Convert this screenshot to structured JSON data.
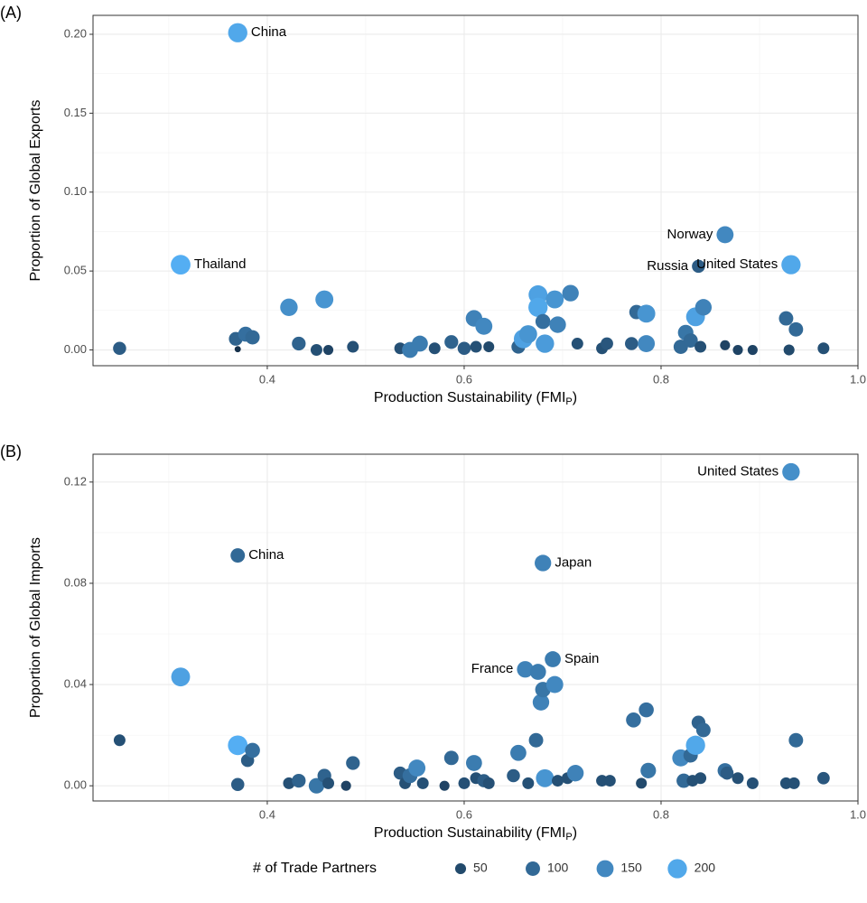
{
  "chart_data": [
    {
      "type": "scatter",
      "panel_label": "(A)",
      "xlabel": {
        "text": "Production Sustainability (FMI",
        "subscript": "P",
        "suffix": ")"
      },
      "ylabel": "Proportion of Global Exports",
      "xlim": [
        0.223,
        1.0
      ],
      "ylim": [
        -0.01,
        0.212
      ],
      "xticks": [
        0.4,
        0.6,
        0.8,
        {
          "value": 1,
          "label": "1.0"
        }
      ],
      "yticks": [
        {
          "value": 0,
          "label": "0.00"
        },
        {
          "value": 0.05,
          "label": "0.05"
        },
        {
          "value": 0.1,
          "label": "0.10"
        },
        {
          "value": 0.15,
          "label": "0.15"
        },
        {
          "value": 0.2,
          "label": "0.20"
        }
      ],
      "grid": true,
      "x": [
        0.37,
        0.312,
        0.25,
        0.368,
        0.37,
        0.378,
        0.385,
        0.422,
        0.432,
        0.45,
        0.458,
        0.462,
        0.487,
        0.535,
        0.545,
        0.555,
        0.57,
        0.587,
        0.6,
        0.61,
        0.612,
        0.62,
        0.625,
        0.655,
        0.66,
        0.665,
        0.675,
        0.675,
        0.68,
        0.682,
        0.692,
        0.695,
        0.708,
        0.715,
        0.74,
        0.745,
        0.77,
        0.775,
        0.785,
        0.785,
        0.82,
        0.825,
        0.83,
        0.835,
        0.84,
        0.843,
        0.838,
        0.865,
        0.865,
        0.878,
        0.893,
        0.927,
        0.93,
        0.932,
        0.937,
        0.965
      ],
      "y": [
        0.201,
        0.054,
        0.001,
        0.007,
        0.0005,
        0.01,
        0.008,
        0.027,
        0.004,
        0,
        0.032,
        0,
        0.002,
        0.001,
        0,
        0.004,
        0.001,
        0.005,
        0.001,
        0.02,
        0.002,
        0.015,
        0.002,
        0.002,
        0.007,
        0.01,
        0.035,
        0.027,
        0.018,
        0.004,
        0.032,
        0.016,
        0.036,
        0.004,
        0.001,
        0.004,
        0.004,
        0.024,
        0.023,
        0.004,
        0.002,
        0.011,
        0.006,
        0.021,
        0.002,
        0.027,
        0.053,
        0.073,
        0.003,
        0,
        0,
        0.02,
        0,
        0.054,
        0.013,
        0.001
      ],
      "size": [
        200,
        210,
        80,
        90,
        10,
        110,
        100,
        160,
        90,
        60,
        170,
        40,
        60,
        60,
        130,
        130,
        60,
        90,
        80,
        140,
        60,
        150,
        50,
        90,
        190,
        170,
        190,
        200,
        110,
        180,
        170,
        140,
        140,
        60,
        60,
        70,
        80,
        100,
        170,
        150,
        100,
        120,
        100,
        190,
        60,
        140,
        80,
        150,
        40,
        40,
        40,
        100,
        50,
        200,
        100,
        60
      ],
      "labels": [
        "China",
        "Thailand",
        null,
        null,
        null,
        null,
        null,
        null,
        null,
        null,
        null,
        null,
        null,
        null,
        null,
        null,
        null,
        null,
        null,
        null,
        null,
        null,
        null,
        null,
        null,
        null,
        null,
        null,
        null,
        null,
        null,
        null,
        null,
        null,
        null,
        null,
        null,
        null,
        null,
        null,
        null,
        null,
        null,
        null,
        null,
        null,
        "Russia",
        "Norway",
        null,
        null,
        null,
        null,
        null,
        "United States",
        null,
        null
      ]
    },
    {
      "type": "scatter",
      "panel_label": "(B)",
      "xlabel": {
        "text": "Production Sustainability (FMI",
        "subscript": "P",
        "suffix": ")"
      },
      "ylabel": "Proportion of Global Imports",
      "xlim": [
        0.223,
        1.0
      ],
      "ylim": [
        -0.006,
        0.131
      ],
      "xticks": [
        0.4,
        0.6,
        0.8,
        {
          "value": 1,
          "label": "1.0"
        }
      ],
      "yticks": [
        {
          "value": 0,
          "label": "0.00"
        },
        {
          "value": 0.04,
          "label": "0.04"
        },
        {
          "value": 0.08,
          "label": "0.08"
        },
        {
          "value": 0.12,
          "label": "0.12"
        }
      ],
      "grid": true,
      "x": [
        0.25,
        0.312,
        0.37,
        0.37,
        0.37,
        0.38,
        0.385,
        0.422,
        0.432,
        0.45,
        0.458,
        0.462,
        0.48,
        0.487,
        0.535,
        0.54,
        0.545,
        0.552,
        0.558,
        0.58,
        0.587,
        0.6,
        0.61,
        0.612,
        0.62,
        0.625,
        0.65,
        0.655,
        0.662,
        0.665,
        0.673,
        0.675,
        0.678,
        0.68,
        0.68,
        0.682,
        0.69,
        0.692,
        0.695,
        0.705,
        0.713,
        0.74,
        0.748,
        0.772,
        0.78,
        0.785,
        0.787,
        0.82,
        0.823,
        0.83,
        0.832,
        0.835,
        0.84,
        0.838,
        0.843,
        0.865,
        0.867,
        0.878,
        0.893,
        0.927,
        0.932,
        0.935,
        0.937,
        0.965
      ],
      "y": [
        0.018,
        0.043,
        0.091,
        0.016,
        0.0005,
        0.01,
        0.014,
        0.001,
        0.002,
        0,
        0.004,
        0.001,
        0,
        0.009,
        0.005,
        0.001,
        0.004,
        0.007,
        0.001,
        0,
        0.011,
        0.001,
        0.009,
        0.003,
        0.002,
        0.001,
        0.004,
        0.013,
        0.046,
        0.001,
        0.018,
        0.045,
        0.033,
        0.038,
        0.088,
        0.003,
        0.05,
        0.04,
        0.002,
        0.003,
        0.005,
        0.002,
        0.002,
        0.026,
        0.001,
        0.03,
        0.006,
        0.011,
        0.002,
        0.012,
        0.002,
        0.016,
        0.003,
        0.025,
        0.022,
        0.006,
        0.005,
        0.003,
        0.001,
        0.001,
        0.124,
        0.001,
        0.018,
        0.003
      ],
      "size": [
        60,
        190,
        100,
        210,
        80,
        80,
        110,
        60,
        90,
        120,
        90,
        60,
        40,
        90,
        80,
        60,
        110,
        150,
        60,
        40,
        100,
        60,
        130,
        60,
        80,
        60,
        80,
        130,
        140,
        60,
        100,
        130,
        140,
        120,
        140,
        170,
        130,
        150,
        60,
        60,
        140,
        60,
        60,
        110,
        50,
        110,
        120,
        150,
        100,
        100,
        60,
        200,
        60,
        90,
        100,
        110,
        80,
        60,
        60,
        60,
        160,
        60,
        100,
        70
      ],
      "labels": [
        null,
        null,
        "China",
        null,
        null,
        null,
        null,
        null,
        null,
        null,
        null,
        null,
        null,
        null,
        null,
        null,
        null,
        null,
        null,
        null,
        null,
        null,
        null,
        null,
        null,
        null,
        null,
        null,
        "France",
        null,
        null,
        null,
        null,
        null,
        "Japan",
        null,
        "Spain",
        null,
        null,
        null,
        null,
        null,
        null,
        null,
        null,
        null,
        null,
        null,
        null,
        null,
        null,
        null,
        null,
        null,
        null,
        null,
        null,
        null,
        null,
        null,
        "United States",
        null,
        null,
        null
      ]
    }
  ],
  "legend": {
    "title": "# of Trade Partners",
    "ticks": [
      50,
      100,
      150,
      200
    ],
    "size_lim": [
      1,
      215
    ],
    "color_low": "#132B43",
    "color_high": "#56B1F7",
    "position": "bottom"
  }
}
